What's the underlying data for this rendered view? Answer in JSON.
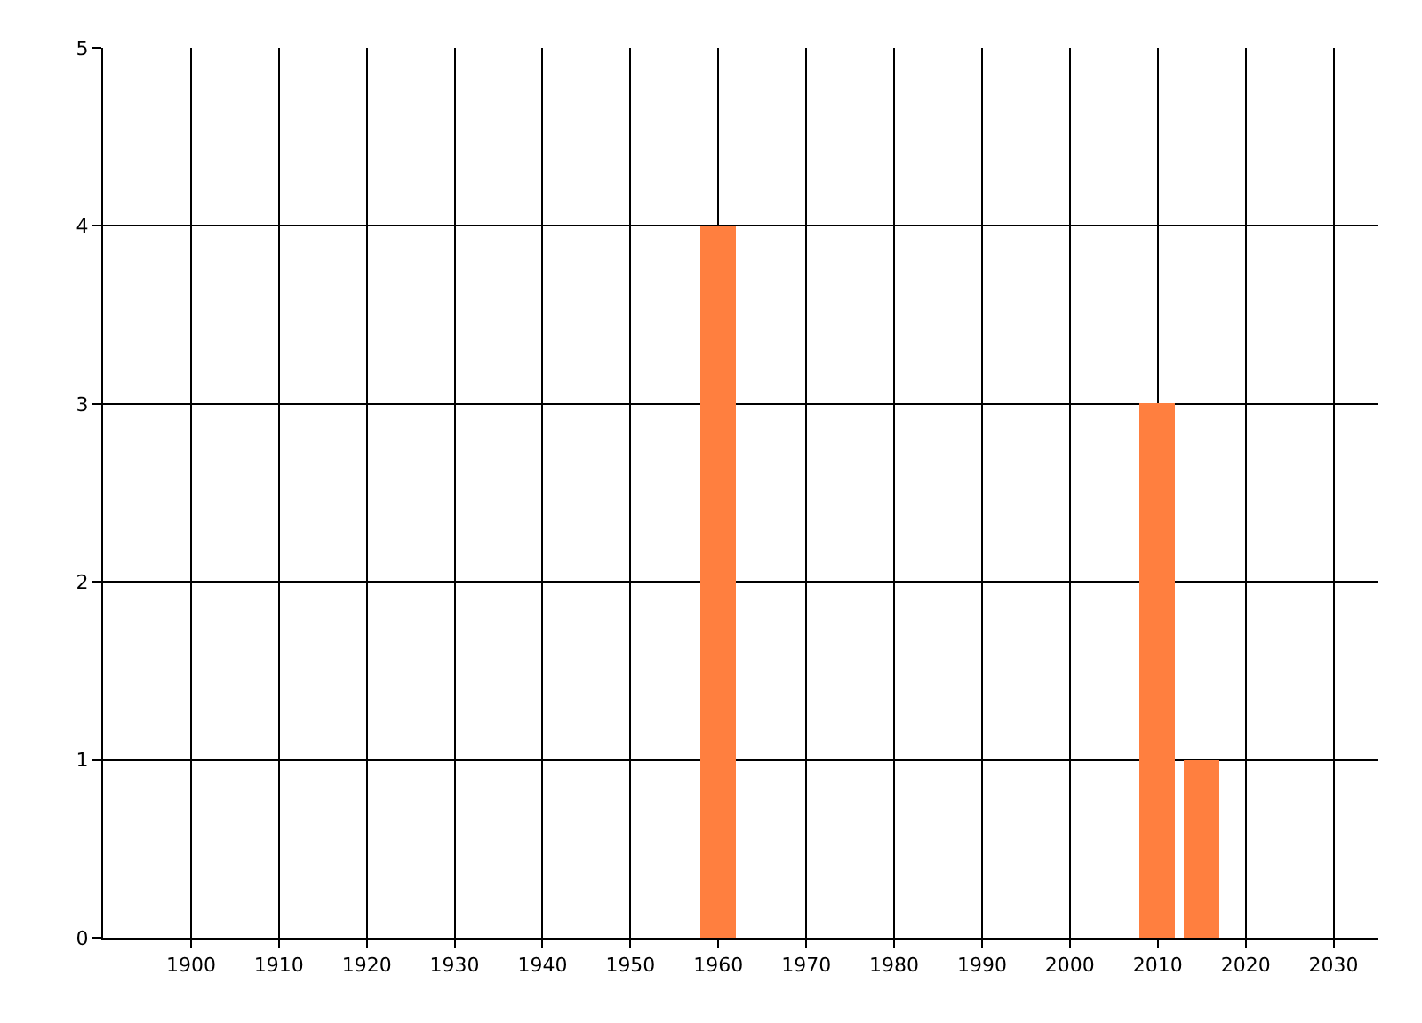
{
  "chart_data": {
    "type": "bar",
    "x": [
      1960,
      2010,
      2015
    ],
    "values": [
      4,
      3,
      1
    ],
    "color": "#ff7f3f",
    "xlim": [
      1890,
      2035
    ],
    "xticks": [
      1900,
      1910,
      1920,
      1930,
      1940,
      1950,
      1960,
      1970,
      1980,
      1990,
      2000,
      2010,
      2020,
      2030
    ],
    "ylim": [
      0,
      5
    ],
    "yticks": [
      0,
      1,
      2,
      3,
      4,
      5
    ],
    "grid": true
  }
}
